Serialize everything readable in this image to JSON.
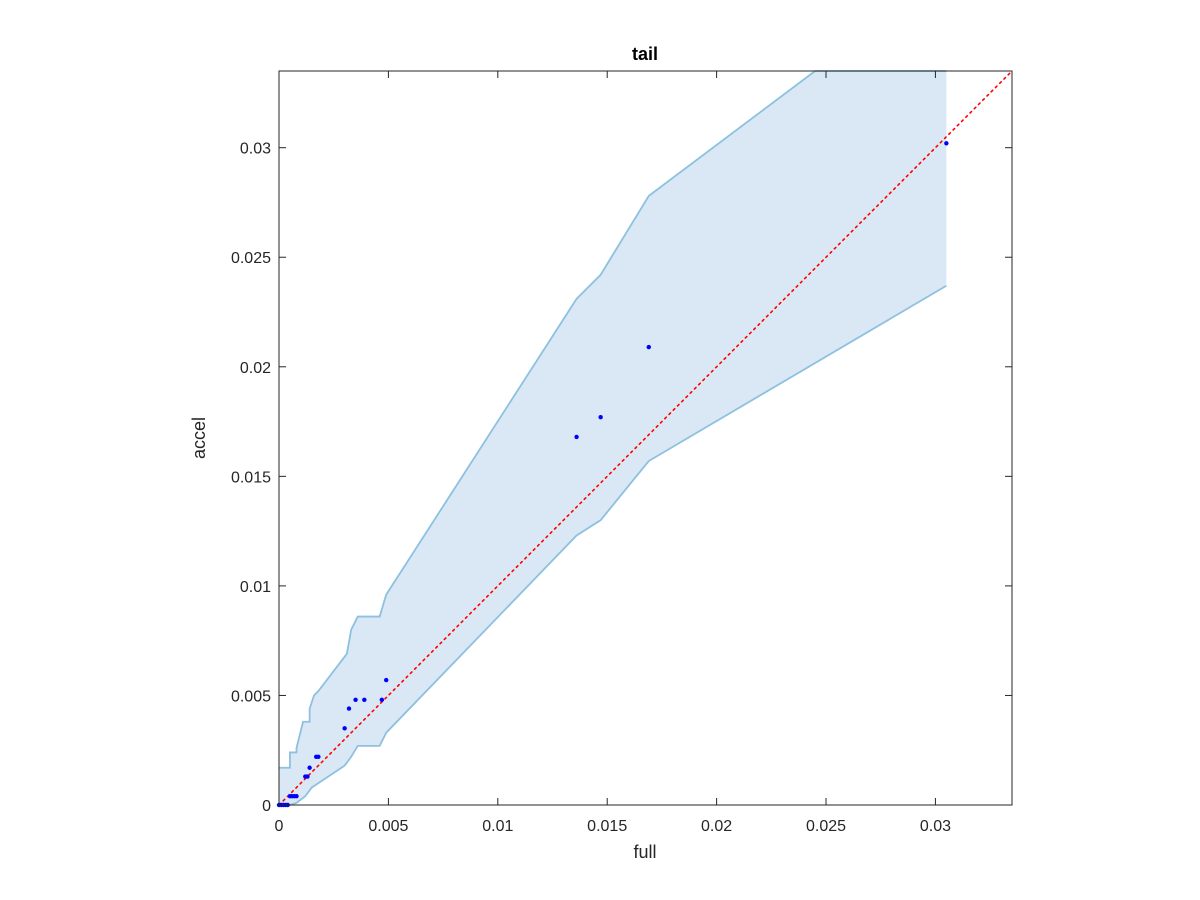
{
  "chart_data": {
    "type": "scatter",
    "title": "tail",
    "xlabel": "full",
    "ylabel": "accel",
    "xlim": [
      0,
      0.0335
    ],
    "ylim": [
      0,
      0.0335
    ],
    "xticks": [
      {
        "value": 0,
        "label": "0"
      },
      {
        "value": 0.005,
        "label": "0.005"
      },
      {
        "value": 0.01,
        "label": "0.01"
      },
      {
        "value": 0.015,
        "label": "0.015"
      },
      {
        "value": 0.02,
        "label": "0.02"
      },
      {
        "value": 0.025,
        "label": "0.025"
      },
      {
        "value": 0.03,
        "label": "0.03"
      }
    ],
    "yticks": [
      {
        "value": 0,
        "label": "0"
      },
      {
        "value": 0.005,
        "label": "0.005"
      },
      {
        "value": 0.01,
        "label": "0.01"
      },
      {
        "value": 0.015,
        "label": "0.015"
      },
      {
        "value": 0.02,
        "label": "0.02"
      },
      {
        "value": 0.025,
        "label": "0.025"
      },
      {
        "value": 0.03,
        "label": "0.03"
      }
    ],
    "grid": false,
    "points": {
      "x": [
        0.0,
        0.0001,
        0.0002,
        0.0003,
        0.0004,
        0.0005,
        0.0006,
        0.0007,
        0.0008,
        0.0012,
        0.0013,
        0.0014,
        0.0017,
        0.0018,
        0.003,
        0.0032,
        0.0035,
        0.0039,
        0.0047,
        0.0049,
        0.0136,
        0.0147,
        0.0169,
        0.0305
      ],
      "y": [
        0.0,
        0.0,
        0.0,
        0.0,
        0.0,
        0.0004,
        0.0004,
        0.0004,
        0.0004,
        0.0013,
        0.0013,
        0.0017,
        0.0022,
        0.0022,
        0.0035,
        0.0044,
        0.0048,
        0.0048,
        0.0048,
        0.0057,
        0.0168,
        0.0177,
        0.0209,
        0.0302
      ],
      "color": "#0000ff"
    },
    "reference_line": {
      "x": [
        0,
        0.0335
      ],
      "y": [
        0,
        0.0335
      ],
      "style": "dotted",
      "color": "#ff0000"
    },
    "band": {
      "upper": {
        "x": [
          0,
          0.0005,
          0.0005,
          0.0008,
          0.0008,
          0.0011,
          0.0014,
          0.0014,
          0.0016,
          0.0018,
          0.0031,
          0.0033,
          0.0036,
          0.0046,
          0.0049,
          0.0136,
          0.0147,
          0.0169,
          0.0245,
          0.0305
        ],
        "y": [
          0.0017,
          0.0017,
          0.0024,
          0.0024,
          0.0026,
          0.0038,
          0.0038,
          0.0044,
          0.005,
          0.0052,
          0.0069,
          0.008,
          0.0086,
          0.0086,
          0.0096,
          0.0231,
          0.0242,
          0.0278,
          0.0335,
          0.0335
        ]
      },
      "lower": {
        "x": [
          0,
          0.0005,
          0.0008,
          0.0012,
          0.0015,
          0.0018,
          0.003,
          0.0033,
          0.0036,
          0.0046,
          0.0049,
          0.0136,
          0.0147,
          0.0169,
          0.0305
        ],
        "y": [
          0,
          0,
          0.0001,
          0.0004,
          0.0008,
          0.001,
          0.0018,
          0.0022,
          0.0027,
          0.0027,
          0.0033,
          0.0123,
          0.013,
          0.0157,
          0.0237
        ]
      },
      "fill_color": "#d9e8f4",
      "edge_color": "#8ec0e0"
    }
  }
}
